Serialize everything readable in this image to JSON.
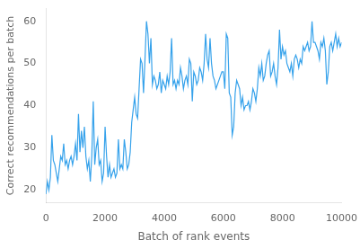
{
  "chart_data": {
    "type": "line",
    "x": [
      0,
      50,
      100,
      150,
      200,
      250,
      300,
      350,
      400,
      450,
      500,
      550,
      600,
      650,
      700,
      750,
      800,
      850,
      900,
      950,
      1000,
      1050,
      1100,
      1150,
      1200,
      1250,
      1300,
      1350,
      1400,
      1450,
      1500,
      1550,
      1600,
      1650,
      1700,
      1750,
      1800,
      1850,
      1900,
      1950,
      2000,
      2050,
      2100,
      2150,
      2200,
      2250,
      2300,
      2350,
      2400,
      2450,
      2500,
      2550,
      2600,
      2650,
      2700,
      2750,
      2800,
      2850,
      2900,
      2950,
      3000,
      3050,
      3100,
      3150,
      3200,
      3250,
      3300,
      3350,
      3400,
      3450,
      3500,
      3550,
      3600,
      3650,
      3700,
      3750,
      3800,
      3850,
      3900,
      3950,
      4000,
      4050,
      4100,
      4150,
      4200,
      4250,
      4300,
      4350,
      4400,
      4450,
      4500,
      4550,
      4600,
      4650,
      4700,
      4750,
      4800,
      4850,
      4900,
      4950,
      5000,
      5050,
      5100,
      5150,
      5200,
      5250,
      5300,
      5350,
      5400,
      5450,
      5500,
      5550,
      5600,
      5650,
      5700,
      5750,
      5800,
      5850,
      5900,
      5950,
      6000,
      6050,
      6100,
      6150,
      6200,
      6250,
      6300,
      6350,
      6400,
      6450,
      6500,
      6550,
      6600,
      6650,
      6700,
      6750,
      6800,
      6850,
      6900,
      6950,
      7000,
      7050,
      7100,
      7150,
      7200,
      7250,
      7300,
      7350,
      7400,
      7450,
      7500,
      7550,
      7600,
      7650,
      7700,
      7750,
      7800,
      7850,
      7900,
      7950,
      8000,
      8050,
      8100,
      8150,
      8200,
      8250,
      8300,
      8350,
      8400,
      8450,
      8500,
      8550,
      8600,
      8650,
      8700,
      8750,
      8800,
      8850,
      8900,
      8950,
      9000,
      9050,
      9100,
      9150,
      9200,
      9250,
      9300,
      9350,
      9400,
      9450,
      9500,
      9550,
      9600,
      9650,
      9700,
      9750,
      9800,
      9850,
      9900,
      9950,
      10000
    ],
    "values": [
      19,
      22,
      20,
      23,
      33,
      27,
      26,
      24,
      22,
      25,
      28,
      27,
      31,
      26,
      27,
      25,
      27,
      28,
      26,
      28,
      31,
      27,
      38,
      29,
      34,
      30,
      35,
      28,
      25,
      27,
      22,
      28,
      41,
      26,
      30,
      32,
      26,
      27,
      22,
      24,
      35,
      28,
      23,
      26,
      23,
      24,
      25,
      23,
      24,
      32,
      25,
      26,
      25,
      32,
      29,
      25,
      26,
      29,
      36,
      39,
      42,
      38,
      37,
      44,
      51,
      50,
      43,
      51,
      60,
      57,
      50,
      56,
      45,
      47,
      46,
      44,
      45,
      48,
      43,
      46,
      45,
      44,
      47,
      45,
      48,
      56,
      45,
      46,
      44,
      46,
      45,
      49,
      47,
      44,
      46,
      47,
      45,
      51,
      50,
      41,
      48,
      47,
      45,
      46,
      49,
      48,
      46,
      50,
      57,
      51,
      49,
      56,
      50,
      47,
      46,
      44,
      45,
      46,
      47,
      48,
      48,
      44,
      57,
      56,
      43,
      42,
      33,
      35,
      43,
      46,
      45,
      44,
      40,
      42,
      39,
      40,
      40,
      41,
      39,
      41,
      44,
      43,
      41,
      44,
      49,
      47,
      50,
      46,
      47,
      50,
      52,
      53,
      47,
      48,
      50,
      47,
      45,
      49,
      58,
      51,
      54,
      52,
      53,
      50,
      49,
      48,
      50,
      47,
      51,
      52,
      51,
      49,
      51,
      50,
      54,
      53,
      54,
      55,
      53,
      54,
      60,
      55,
      55,
      54,
      53,
      51,
      55,
      54,
      56,
      53,
      45,
      48,
      54,
      55,
      53,
      55,
      57,
      54,
      56,
      54,
      55
    ],
    "xlabel": "Batch of rank events",
    "ylabel": "Correct recommendations per batch",
    "xlim": [
      0,
      10000
    ],
    "ylim": [
      17,
      63
    ],
    "xticks": [
      0,
      2000,
      4000,
      6000,
      8000,
      10000
    ],
    "yticks": [
      20,
      30,
      40,
      50,
      60
    ],
    "grid": false
  }
}
